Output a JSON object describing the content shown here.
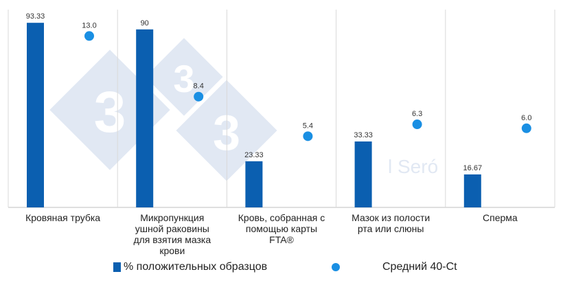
{
  "chart_data": {
    "type": "bar",
    "categories": [
      [
        "Кровяная трубка"
      ],
      [
        "Микропункция",
        "ушной раковины",
        "для взятия мазка",
        "крови"
      ],
      [
        "Кровь, собранная с",
        "помощью карты",
        "FTA®"
      ],
      [
        "Мазок из полости",
        "рта или слюны"
      ],
      [
        "Сперма"
      ]
    ],
    "series": [
      {
        "name": "% положительных образцов",
        "type": "bar",
        "values": [
          93.33,
          90,
          23.33,
          33.33,
          16.67
        ],
        "labels": [
          "93.33",
          "90",
          "23.33",
          "33.33",
          "16.67"
        ]
      },
      {
        "name": "Средний 40-Ct",
        "type": "scatter",
        "values": [
          13.0,
          8.4,
          5.4,
          6.3,
          6.0
        ],
        "labels": [
          "13.0",
          "8.4",
          "5.4",
          "6.3",
          "6.0"
        ]
      }
    ],
    "primary_ylim": [
      0,
      100
    ],
    "secondary_ylim": [
      0,
      15
    ],
    "legend_position": "bottom",
    "grid": "vertical category separators",
    "watermark_text": "l Seró"
  },
  "colors": {
    "bar": "#0b5fb0",
    "dot": "#1a8fe3",
    "axis": "#bfbfbf",
    "watermark": "#c9d6ea"
  },
  "legend": {
    "bar_label": "% положительных образцов",
    "dot_label": "Средний 40-Ct"
  }
}
